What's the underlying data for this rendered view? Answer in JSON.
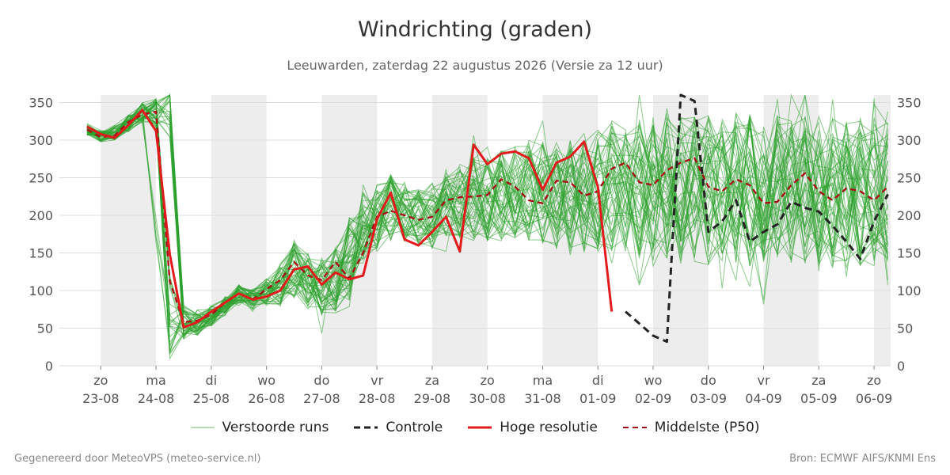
{
  "title": "Windrichting (graden)",
  "subtitle": "Leeuwarden, zaterdag 22 augustus 2026 (Versie za 12 uur)",
  "footer": {
    "left": "Gegenereerd door MeteoVPS (meteo-service.nl)",
    "right": "Bron: ECMWF AIFS/KNMI Ens"
  },
  "legend": {
    "ensemble": "Verstoorde runs",
    "control": "Controle",
    "hires": "Hoge resolutie",
    "median": "Middelste (P50)"
  },
  "colors": {
    "ensemble": "#2ca02c",
    "control": "#222222",
    "hires": "#e31a1c",
    "median": "#a50f15",
    "day_band": "#ededed",
    "grid": "#dddddd"
  },
  "chart_data": {
    "type": "line",
    "x_unit": "day",
    "x_domain": [
      -0.75,
      14.3
    ],
    "ylim": [
      0,
      360
    ],
    "yticks": [
      0,
      50,
      100,
      150,
      200,
      250,
      300,
      350
    ],
    "grid": true,
    "legend_position": "bottom",
    "days": [
      {
        "x": 0,
        "weekday": "zo",
        "date": "23-08"
      },
      {
        "x": 1,
        "weekday": "ma",
        "date": "24-08"
      },
      {
        "x": 2,
        "weekday": "di",
        "date": "25-08"
      },
      {
        "x": 3,
        "weekday": "wo",
        "date": "26-08"
      },
      {
        "x": 4,
        "weekday": "do",
        "date": "27-08"
      },
      {
        "x": 5,
        "weekday": "vr",
        "date": "28-08"
      },
      {
        "x": 6,
        "weekday": "za",
        "date": "29-08"
      },
      {
        "x": 7,
        "weekday": "zo",
        "date": "30-08"
      },
      {
        "x": 8,
        "weekday": "ma",
        "date": "31-08"
      },
      {
        "x": 9,
        "weekday": "di",
        "date": "01-09"
      },
      {
        "x": 10,
        "weekday": "wo",
        "date": "02-09"
      },
      {
        "x": 11,
        "weekday": "do",
        "date": "03-09"
      },
      {
        "x": 12,
        "weekday": "vr",
        "date": "04-09"
      },
      {
        "x": 13,
        "weekday": "za",
        "date": "05-09"
      },
      {
        "x": 14,
        "weekday": "zo",
        "date": "06-09"
      }
    ],
    "shaded_days": [
      [
        0,
        1
      ],
      [
        2,
        3
      ],
      [
        4,
        5
      ],
      [
        6,
        7
      ],
      [
        8,
        9
      ],
      [
        10,
        11
      ],
      [
        12,
        13
      ],
      [
        14,
        14.3
      ]
    ],
    "ensemble_band": {
      "x": [
        -0.25,
        0,
        0.25,
        0.5,
        0.75,
        1.0,
        1.25,
        1.5,
        1.75,
        2.0,
        2.25,
        2.5,
        2.75,
        3.0,
        3.25,
        3.5,
        3.75,
        4.0,
        4.25,
        4.5,
        4.75,
        5.0,
        5.25,
        5.5,
        5.75,
        6.0,
        6.25,
        6.5,
        6.75,
        7.0,
        7.25,
        7.5,
        7.75,
        8.0,
        8.25,
        8.5,
        8.75,
        9.0,
        9.25,
        9.5,
        9.75,
        10.0,
        10.25,
        10.5,
        10.75,
        11.0,
        11.25,
        11.5,
        11.75,
        12.0,
        12.25,
        12.5,
        12.75,
        13.0,
        13.25,
        13.5,
        13.75,
        14.0,
        14.25
      ],
      "center": [
        314,
        305,
        310,
        322,
        336,
        338,
        180,
        66,
        58,
        66,
        80,
        94,
        88,
        98,
        108,
        128,
        114,
        106,
        118,
        142,
        185,
        200,
        210,
        205,
        196,
        200,
        214,
        220,
        222,
        222,
        226,
        232,
        234,
        230,
        226,
        226,
        230,
        232,
        236,
        240,
        236,
        236,
        238,
        236,
        232,
        234,
        232,
        236,
        234,
        232,
        236,
        232,
        234,
        232,
        232,
        230,
        232,
        232,
        232
      ],
      "spread": [
        8,
        8,
        10,
        12,
        14,
        20,
        60,
        24,
        18,
        14,
        14,
        14,
        16,
        18,
        30,
        40,
        36,
        40,
        48,
        56,
        56,
        48,
        44,
        40,
        40,
        44,
        48,
        52,
        56,
        56,
        60,
        64,
        68,
        68,
        72,
        76,
        80,
        84,
        88,
        92,
        94,
        96,
        98,
        100,
        100,
        100,
        100,
        100,
        100,
        100,
        100,
        100,
        100,
        100,
        100,
        100,
        100,
        100,
        100
      ],
      "member_count": 50
    },
    "series": [
      {
        "name": "Hoge resolutie",
        "x": [
          -0.25,
          0,
          0.25,
          0.5,
          0.75,
          1.0,
          1.25,
          1.5,
          1.75,
          2.0,
          2.25,
          2.5,
          2.75,
          3.0,
          3.25,
          3.5,
          3.75,
          4.0,
          4.25,
          4.5,
          4.75,
          5.0,
          5.25,
          5.5,
          5.75,
          6.0,
          6.25,
          6.5,
          6.75,
          7.0,
          7.25,
          7.5,
          7.75,
          8.0,
          8.25,
          8.5,
          8.75,
          9.0,
          9.25,
          9.5
        ],
        "y": [
          318,
          308,
          303,
          320,
          340,
          312,
          148,
          51,
          58,
          72,
          84,
          96,
          88,
          92,
          100,
          128,
          132,
          108,
          124,
          115,
          120,
          195,
          230,
          168,
          160,
          178,
          198,
          152,
          294,
          268,
          282,
          285,
          276,
          234,
          270,
          278,
          298,
          238,
          72,
          null
        ]
      },
      {
        "name": "Controle",
        "x": [
          9.5,
          9.75,
          10.0,
          10.25,
          10.5,
          10.75,
          11.0,
          11.25,
          11.5,
          11.75,
          12.0,
          12.25,
          12.5,
          12.75,
          13.0,
          13.25,
          13.5,
          13.75,
          14.0,
          14.25
        ],
        "y": [
          72,
          56,
          40,
          32,
          360,
          352,
          178,
          192,
          220,
          165,
          178,
          188,
          218,
          210,
          205,
          186,
          165,
          142,
          192,
          228
        ]
      },
      {
        "name": "Middelste (P50)",
        "x": [
          -0.25,
          0,
          0.25,
          0.5,
          0.75,
          1.0,
          1.25,
          1.5,
          1.75,
          2.0,
          2.25,
          2.5,
          2.75,
          3.0,
          3.25,
          3.5,
          3.75,
          4.0,
          4.25,
          4.5,
          4.75,
          5.0,
          5.25,
          5.5,
          5.75,
          6.0,
          6.25,
          6.5,
          6.75,
          7.0,
          7.25,
          7.5,
          7.75,
          8.0,
          8.25,
          8.5,
          8.75,
          9.0,
          9.25,
          9.5,
          9.75,
          10.0,
          10.25,
          10.5,
          10.75,
          11.0,
          11.25,
          11.5,
          11.75,
          12.0,
          12.25,
          12.5,
          12.75,
          13.0,
          13.25,
          13.5,
          13.75,
          14.0,
          14.25
        ],
        "y": [
          314,
          304,
          306,
          324,
          334,
          338,
          112,
          58,
          60,
          68,
          84,
          96,
          88,
          102,
          114,
          138,
          120,
          114,
          138,
          116,
          150,
          198,
          206,
          200,
          194,
          198,
          220,
          224,
          225,
          227,
          248,
          238,
          220,
          216,
          246,
          244,
          226,
          232,
          262,
          270,
          244,
          240,
          260,
          270,
          276,
          238,
          232,
          248,
          240,
          216,
          218,
          240,
          256,
          232,
          220,
          236,
          232,
          220,
          238
        ]
      }
    ]
  }
}
